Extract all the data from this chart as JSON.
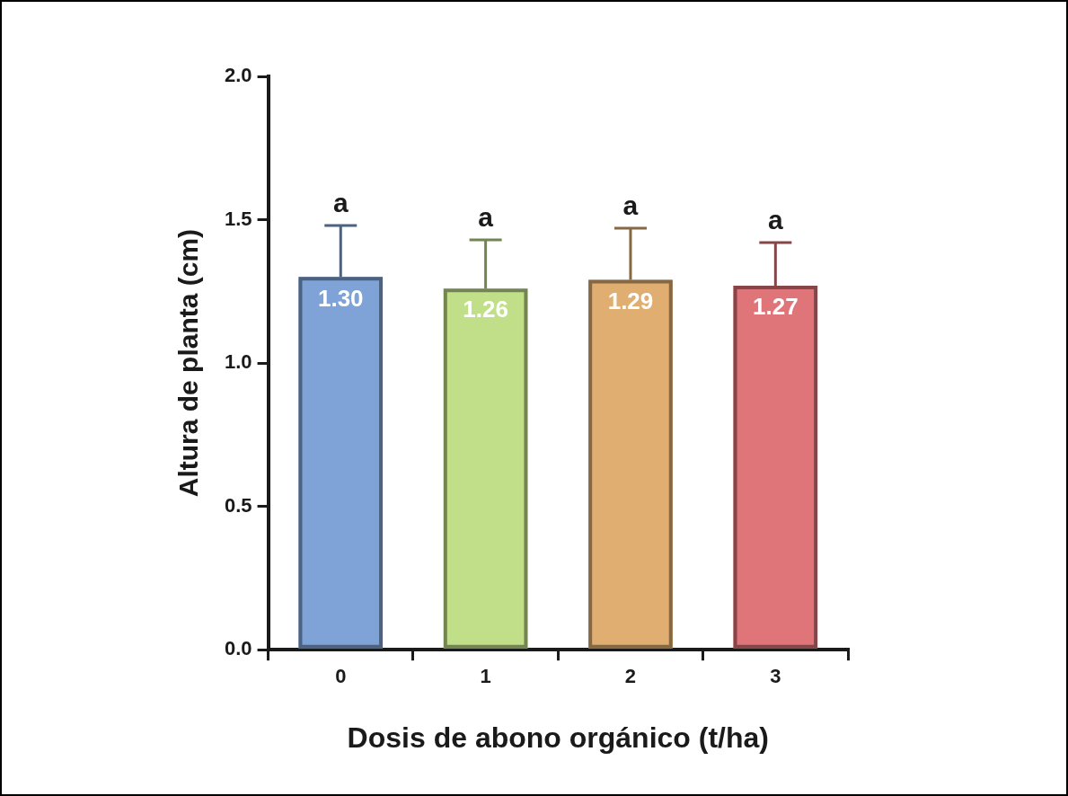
{
  "chart_data": {
    "type": "bar",
    "xlabel": "Dosis de abono orgánico (t/ha)",
    "ylabel": "Altura de planta (cm)",
    "categories": [
      "0",
      "1",
      "2",
      "3"
    ],
    "values": [
      1.3,
      1.26,
      1.29,
      1.27
    ],
    "value_labels": [
      "1.30",
      "1.26",
      "1.29",
      "1.27"
    ],
    "colors": [
      "#7fa3d6",
      "#c0df88",
      "#dfae70",
      "#e07579"
    ],
    "errors": [
      [
        1.3,
        1.48
      ],
      [
        1.26,
        1.43
      ],
      [
        1.29,
        1.47
      ],
      [
        1.27,
        1.42
      ]
    ],
    "ylim": [
      0,
      2
    ],
    "yticks": [
      {
        "value": 0,
        "label": "0.0"
      },
      {
        "value": 0.5,
        "label": "0.5"
      },
      {
        "value": 1,
        "label": "1.0"
      },
      {
        "value": 1.5,
        "label": "1.5"
      },
      {
        "value": 2,
        "label": "2.0"
      }
    ],
    "grid": false,
    "legend": false,
    "annotations": [
      "a",
      "a",
      "a",
      "a"
    ]
  }
}
